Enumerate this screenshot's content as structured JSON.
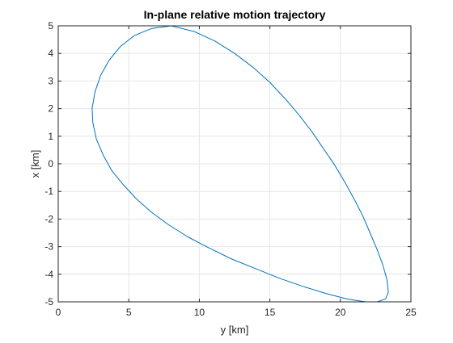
{
  "chart_data": {
    "type": "line",
    "title": "In-plane relative motion trajectory",
    "xlabel": "y [km]",
    "ylabel": "x [km]",
    "xlim": [
      0,
      25
    ],
    "ylim": [
      -5,
      5
    ],
    "xticks": [
      "0",
      "5",
      "10",
      "15",
      "20",
      "25"
    ],
    "yticks": [
      "-5",
      "-4",
      "-3",
      "-2",
      "-1",
      "0",
      "1",
      "2",
      "3",
      "4",
      "5"
    ],
    "grid": true,
    "legend": "none",
    "colors": {
      "series": "#0072BD",
      "grid": "#e6e6e6",
      "axis": "#262626"
    },
    "series": [
      {
        "x": [
          8.0,
          9.6,
          11.1,
          12.5,
          13.8,
          15.0,
          16.1,
          17.1,
          18.0,
          18.8,
          19.6,
          20.3,
          21.0,
          21.6,
          22.1,
          22.6,
          23.0,
          23.3,
          23.4,
          23.2,
          22.6,
          21.8,
          20.5,
          19.0,
          17.4,
          15.7,
          14.0,
          12.3,
          10.7,
          9.2,
          7.8,
          6.6,
          5.5,
          4.6,
          3.8,
          3.2,
          2.7,
          2.45,
          2.4,
          2.6,
          3.0,
          3.6,
          4.4,
          5.4,
          6.6,
          8.0
        ],
        "y": [
          5.0,
          4.8,
          4.45,
          4.0,
          3.5,
          2.95,
          2.35,
          1.75,
          1.15,
          0.55,
          -0.05,
          -0.65,
          -1.3,
          -1.9,
          -2.5,
          -3.1,
          -3.65,
          -4.2,
          -4.65,
          -4.9,
          -5.0,
          -5.0,
          -4.9,
          -4.7,
          -4.45,
          -4.15,
          -3.8,
          -3.45,
          -3.05,
          -2.65,
          -2.2,
          -1.75,
          -1.25,
          -0.75,
          -0.25,
          0.3,
          0.9,
          1.5,
          2.0,
          2.6,
          3.2,
          3.75,
          4.25,
          4.65,
          4.9,
          5.0
        ]
      }
    ]
  }
}
